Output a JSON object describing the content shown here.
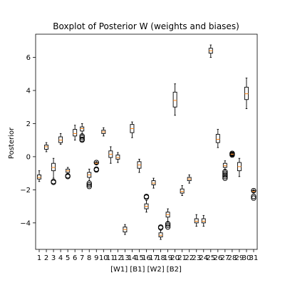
{
  "chart_data": {
    "type": "box",
    "title": "Boxplot of Posterior W (weights and biases)",
    "xlabel": "[W1] [B1] [W2] [B2]",
    "ylabel": "Posterior",
    "ylim": [
      -5.6,
      7.4
    ],
    "yticks": [
      -4,
      -2,
      0,
      2,
      4,
      6
    ],
    "grid": false,
    "colors": {
      "box": "#000000",
      "median": "#ff7f0e",
      "background": "#ffffff"
    },
    "categories": [
      "1",
      "2",
      "3",
      "4",
      "5",
      "6",
      "7",
      "8",
      "9",
      "10",
      "11",
      "12",
      "13",
      "14",
      "15",
      "16",
      "17",
      "18",
      "19",
      "20",
      "21",
      "22",
      "23",
      "24",
      "25",
      "26",
      "27",
      "28",
      "29",
      "30",
      "31"
    ],
    "boxes": [
      {
        "label": "1",
        "whislo": -1.5,
        "q1": -1.35,
        "med": -1.25,
        "q3": -1.1,
        "whishi": -0.85,
        "fliers": []
      },
      {
        "label": "2",
        "whislo": 0.3,
        "q1": 0.45,
        "med": 0.6,
        "q3": 0.7,
        "whishi": 0.85,
        "fliers": []
      },
      {
        "label": "3",
        "whislo": -1.3,
        "q1": -0.85,
        "med": -0.65,
        "q3": -0.4,
        "whishi": -0.1,
        "fliers": [
          -1.5,
          -1.55
        ]
      },
      {
        "label": "4",
        "whislo": 0.75,
        "q1": 0.85,
        "med": 1.0,
        "q3": 1.2,
        "whishi": 1.4,
        "fliers": []
      },
      {
        "label": "5",
        "whislo": -1.05,
        "q1": -0.95,
        "med": -0.85,
        "q3": -0.75,
        "whishi": -0.65,
        "fliers": [
          -1.15,
          -1.2
        ]
      },
      {
        "label": "6",
        "whislo": 1.0,
        "q1": 1.25,
        "med": 1.4,
        "q3": 1.65,
        "whishi": 1.9,
        "fliers": []
      },
      {
        "label": "7",
        "whislo": 1.35,
        "q1": 1.55,
        "med": 1.7,
        "q3": 1.8,
        "whishi": 2.0,
        "fliers": [
          1.25,
          1.15,
          1.05,
          1.0
        ]
      },
      {
        "label": "8",
        "whislo": -1.45,
        "q1": -1.25,
        "med": -1.1,
        "q3": -0.95,
        "whishi": -0.75,
        "fliers": [
          -1.6,
          -1.7,
          -1.8
        ]
      },
      {
        "label": "9",
        "whislo": -0.5,
        "q1": -0.45,
        "med": -0.4,
        "q3": -0.35,
        "whishi": -0.3,
        "fliers": [
          -0.35,
          -0.75,
          -0.8
        ]
      },
      {
        "label": "10",
        "whislo": 1.25,
        "q1": 1.4,
        "med": 1.5,
        "q3": 1.6,
        "whishi": 1.75,
        "fliers": []
      },
      {
        "label": "11",
        "whislo": -0.4,
        "q1": -0.05,
        "med": 0.15,
        "q3": 0.35,
        "whishi": 0.6,
        "fliers": []
      },
      {
        "label": "12",
        "whislo": -0.35,
        "q1": -0.15,
        "med": -0.05,
        "q3": 0.1,
        "whishi": 0.25,
        "fliers": []
      },
      {
        "label": "13",
        "whislo": -4.7,
        "q1": -4.55,
        "med": -4.4,
        "q3": -4.25,
        "whishi": -4.1,
        "fliers": []
      },
      {
        "label": "14",
        "whislo": 1.15,
        "q1": 1.45,
        "med": 1.7,
        "q3": 1.95,
        "whishi": 2.1,
        "fliers": []
      },
      {
        "label": "15",
        "whislo": -0.95,
        "q1": -0.7,
        "med": -0.5,
        "q3": -0.3,
        "whishi": -0.15,
        "fliers": []
      },
      {
        "label": "16",
        "whislo": -3.35,
        "q1": -3.15,
        "med": -3.0,
        "q3": -2.85,
        "whishi": -2.65,
        "fliers": [
          -2.4,
          -2.45
        ]
      },
      {
        "label": "17",
        "whislo": -1.9,
        "q1": -1.7,
        "med": -1.6,
        "q3": -1.45,
        "whishi": -1.3,
        "fliers": []
      },
      {
        "label": "18",
        "whislo": -5.0,
        "q1": -4.85,
        "med": -4.75,
        "q3": -4.6,
        "whishi": -4.45,
        "fliers": [
          -4.3,
          -4.25
        ]
      },
      {
        "label": "19",
        "whislo": -3.95,
        "q1": -3.65,
        "med": -3.5,
        "q3": -3.35,
        "whishi": -3.15,
        "fliers": [
          -4.05,
          -4.15,
          -4.25
        ]
      },
      {
        "label": "20",
        "whislo": 2.5,
        "q1": 3.0,
        "med": 3.4,
        "q3": 3.9,
        "whishi": 4.4,
        "fliers": []
      },
      {
        "label": "21",
        "whislo": -2.35,
        "q1": -2.2,
        "med": -2.1,
        "q3": -1.95,
        "whishi": -1.75,
        "fliers": []
      },
      {
        "label": "22",
        "whislo": -1.6,
        "q1": -1.45,
        "med": -1.35,
        "q3": -1.25,
        "whishi": -1.1,
        "fliers": []
      },
      {
        "label": "23",
        "whislo": -4.2,
        "q1": -4.0,
        "med": -3.9,
        "q3": -3.75,
        "whishi": -3.5,
        "fliers": []
      },
      {
        "label": "24",
        "whislo": -4.2,
        "q1": -4.0,
        "med": -3.9,
        "q3": -3.75,
        "whishi": -3.55,
        "fliers": []
      },
      {
        "label": "25",
        "whislo": 6.0,
        "q1": 6.25,
        "med": 6.4,
        "q3": 6.55,
        "whishi": 6.75,
        "fliers": []
      },
      {
        "label": "26",
        "whislo": 0.55,
        "q1": 0.85,
        "med": 1.05,
        "q3": 1.35,
        "whishi": 1.65,
        "fliers": []
      },
      {
        "label": "27",
        "whislo": -0.8,
        "q1": -0.65,
        "med": -0.55,
        "q3": -0.4,
        "whishi": -0.25,
        "fliers": [
          -0.9,
          -1.0,
          -1.1,
          -1.2,
          -1.3
        ]
      },
      {
        "label": "28",
        "whislo": 0.05,
        "q1": 0.1,
        "med": 0.15,
        "q3": 0.2,
        "whishi": 0.2,
        "fliers": [
          0.1,
          0.15,
          0.2
        ]
      },
      {
        "label": "29",
        "whislo": -1.2,
        "q1": -0.85,
        "med": -0.6,
        "q3": -0.35,
        "whishi": -0.1,
        "fliers": []
      },
      {
        "label": "30",
        "whislo": 2.9,
        "q1": 3.45,
        "med": 3.8,
        "q3": 4.2,
        "whishi": 4.75,
        "fliers": []
      },
      {
        "label": "31",
        "whislo": -2.2,
        "q1": -2.15,
        "med": -2.1,
        "q3": -2.05,
        "whishi": -2.0,
        "fliers": [
          -2.05,
          -2.4,
          -2.5
        ]
      }
    ]
  }
}
